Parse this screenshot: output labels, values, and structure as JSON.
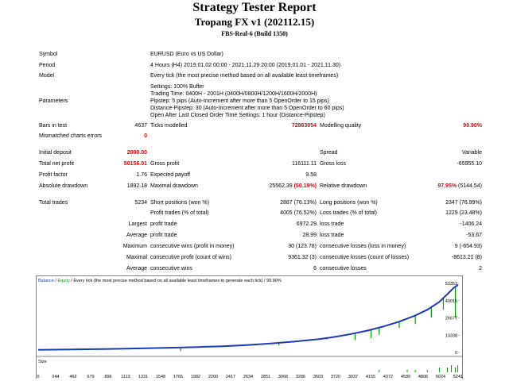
{
  "header": {
    "title": "Strategy Tester Report",
    "subtitle": "Tropang FX v1 (202112.15)",
    "server": "FBS-Real-6 (Build 1350)"
  },
  "info": {
    "symbol_label": "Symbol",
    "symbol_value": "EURUSD (Euro vs US Dollar)",
    "period_label": "Period",
    "period_value": "4 Hours (H4) 2019.01.02 00:00 - 2021.11.29 20:00 (2019.01.01 - 2021.11.30)",
    "model_label": "Model",
    "model_value": "Every tick (the most precise method based on all available least timeframes)",
    "parameters_label": "Parameters",
    "parameters_lines": [
      "Settings: 100% Buffer",
      "Trading Time: 0400H - 2001H (0400H/0800H/1200H/1600H/2000H)",
      "Pipstep: 5 pips (Auto-Increment after more than 5 OpenOrder to 15 pips)",
      "Distance-Pipstep: 30 (Auto-Increment after more than 5 OpenOrder to 60 pips)",
      "Open After Last Closed Order Time Settings: 1 hour (Distance-Pipstep)"
    ]
  },
  "stats": {
    "bars_label": "Bars in test",
    "bars_value": "4637",
    "ticks_label": "Ticks modelled",
    "ticks_value": "72863954",
    "quality_label": "Modelling quality",
    "quality_value": "99.90%",
    "mismatch_label": "Mismatched charts errors",
    "mismatch_value": "0",
    "deposit_label": "Initial deposit",
    "deposit_value": "2000.00",
    "spread_label": "Spread",
    "spread_value": "Variable",
    "net_label": "Total net profit",
    "net_value": "50156.01",
    "gross_profit_label": "Gross profit",
    "gross_profit_value": "116111.11",
    "gross_loss_label": "Gross loss",
    "gross_loss_value": "-65955.10",
    "pf_label": "Profit factor",
    "pf_value": "1.76",
    "payoff_label": "Expected payoff",
    "payoff_value": "9.58",
    "abs_dd_label": "Absolute drawdown",
    "abs_dd_value": "1892.18",
    "max_dd_label": "Maximal drawdown",
    "max_dd_value": "25562.39",
    "max_dd_pct": "(50.19%)",
    "rel_dd_label": "Relative drawdown",
    "rel_dd_pct": "97.95%",
    "rel_dd_value": "(5144.54)",
    "trades_label": "Total trades",
    "trades_value": "5234",
    "short_label": "Short positions (won %)",
    "short_value": "2887 (76.13%)",
    "long_label": "Long positions (won %)",
    "long_value": "2347 (76.99%)",
    "profit_trades_label": "Profit trades (% of total)",
    "profit_trades_value": "4005 (76.52%)",
    "loss_trades_label": "Loss trades (% of total)",
    "loss_trades_value": "1229 (23.48%)",
    "largest_label": "Largest",
    "largest_profit_label": "profit trade",
    "largest_profit_value": "6972.29",
    "largest_loss_label": "loss trade",
    "largest_loss_value": "-1406.24",
    "average_label": "Average",
    "average_profit_label": "profit trade",
    "average_profit_value": "28.99",
    "average_loss_label": "loss trade",
    "average_loss_value": "-53.67",
    "maximum_label": "Maximum",
    "max_cons_wins_label": "consecutive wins (profit in money)",
    "max_cons_wins_value": "30 (123.78)",
    "max_cons_losses_label": "consecutive losses (loss in money)",
    "max_cons_losses_value": "9 (-654.93)",
    "maximal_label": "Maximal",
    "maximal_profit_label": "consecutive profit (count of wins)",
    "maximal_profit_value": "9361.32 (3)",
    "maximal_loss_label": "consecutive losses (count of losses)",
    "maximal_loss_value": "-8613.21 (8)",
    "avg2_label": "Average",
    "avg_cons_wins_label": "consecutive wins",
    "avg_cons_wins_value": "6",
    "avg_cons_losses_label": "consecutive losses",
    "avg_cons_losses_value": "2"
  },
  "chart_data": {
    "type": "line",
    "legend": {
      "balance": "Balance",
      "sep": " / ",
      "equity": "Equity",
      "rest": " / Every tick (the most precise method based on all available least timeframes to generate each tick) / 99.90%"
    },
    "size_label": "Size",
    "x_ticks": [
      "0",
      "244",
      "462",
      "679",
      "896",
      "1113",
      "1331",
      "1548",
      "1765",
      "1982",
      "2200",
      "2417",
      "2634",
      "2851",
      "3068",
      "3286",
      "3503",
      "3720",
      "3937",
      "4155",
      "4372",
      "4589",
      "4806",
      "5024",
      "5241"
    ],
    "y_ticks": [
      "53353",
      "40015",
      "26677",
      "13338",
      "0"
    ],
    "ylim": [
      0,
      53353
    ],
    "xlim": [
      0,
      5234
    ],
    "balance_curve": [
      [
        0,
        2000
      ],
      [
        200,
        2150
      ],
      [
        500,
        2400
      ],
      [
        800,
        2650
      ],
      [
        1100,
        2950
      ],
      [
        1400,
        3300
      ],
      [
        1700,
        3700
      ],
      [
        2000,
        4150
      ],
      [
        2300,
        4800
      ],
      [
        2600,
        5700
      ],
      [
        2900,
        6900
      ],
      [
        3200,
        8400
      ],
      [
        3500,
        10300
      ],
      [
        3700,
        12000
      ],
      [
        3900,
        14200
      ],
      [
        4100,
        16800
      ],
      [
        4300,
        20000
      ],
      [
        4500,
        23800
      ],
      [
        4700,
        28500
      ],
      [
        4850,
        33000
      ],
      [
        5000,
        39000
      ],
      [
        5100,
        45000
      ],
      [
        5180,
        50000
      ],
      [
        5234,
        52150
      ]
    ],
    "equity_dips": [
      [
        1775,
        1000
      ],
      [
        3000,
        5500
      ],
      [
        3600,
        10000
      ],
      [
        3950,
        9500
      ],
      [
        4150,
        11000
      ],
      [
        4250,
        13500
      ],
      [
        4500,
        19000
      ],
      [
        4700,
        22000
      ],
      [
        4900,
        27000
      ],
      [
        5050,
        33000
      ],
      [
        5200,
        26677
      ]
    ],
    "size_bars": [
      [
        4250,
        1
      ],
      [
        4600,
        1
      ],
      [
        4700,
        1
      ],
      [
        4850,
        1
      ],
      [
        5000,
        2
      ],
      [
        5100,
        2
      ],
      [
        5150,
        3
      ],
      [
        5200,
        2
      ],
      [
        5230,
        3
      ]
    ]
  },
  "colors": {
    "balance": "#1c3bb8",
    "equity": "#00a000",
    "size": "#00a000",
    "red": "#e00000"
  }
}
